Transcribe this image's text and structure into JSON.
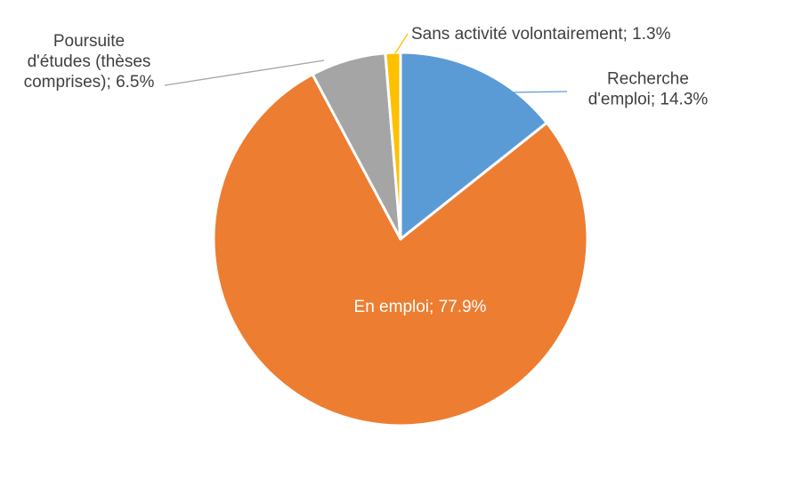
{
  "chart_data": {
    "type": "pie",
    "title": "",
    "categories": [
      "Recherche d'emploi",
      "En emploi",
      "Poursuite d'études (thèses comprises)",
      "Sans activité volontairement"
    ],
    "values": [
      14.3,
      77.9,
      6.5,
      1.3
    ],
    "unit": "%",
    "colors": [
      "#5B9BD5",
      "#ED7D31",
      "#A5A5A5",
      "#FFC000"
    ],
    "labels": [
      [
        "Recherche",
        "d'emploi; 14.3%"
      ],
      [
        "En emploi; 77.9%"
      ],
      [
        "Poursuite",
        "d'études (thèses",
        "comprises); 6.5%"
      ],
      [
        "Sans activité volontairement; 1.3%"
      ]
    ],
    "start_angle": "12 o'clock",
    "direction": "clockwise",
    "legend": "none"
  }
}
